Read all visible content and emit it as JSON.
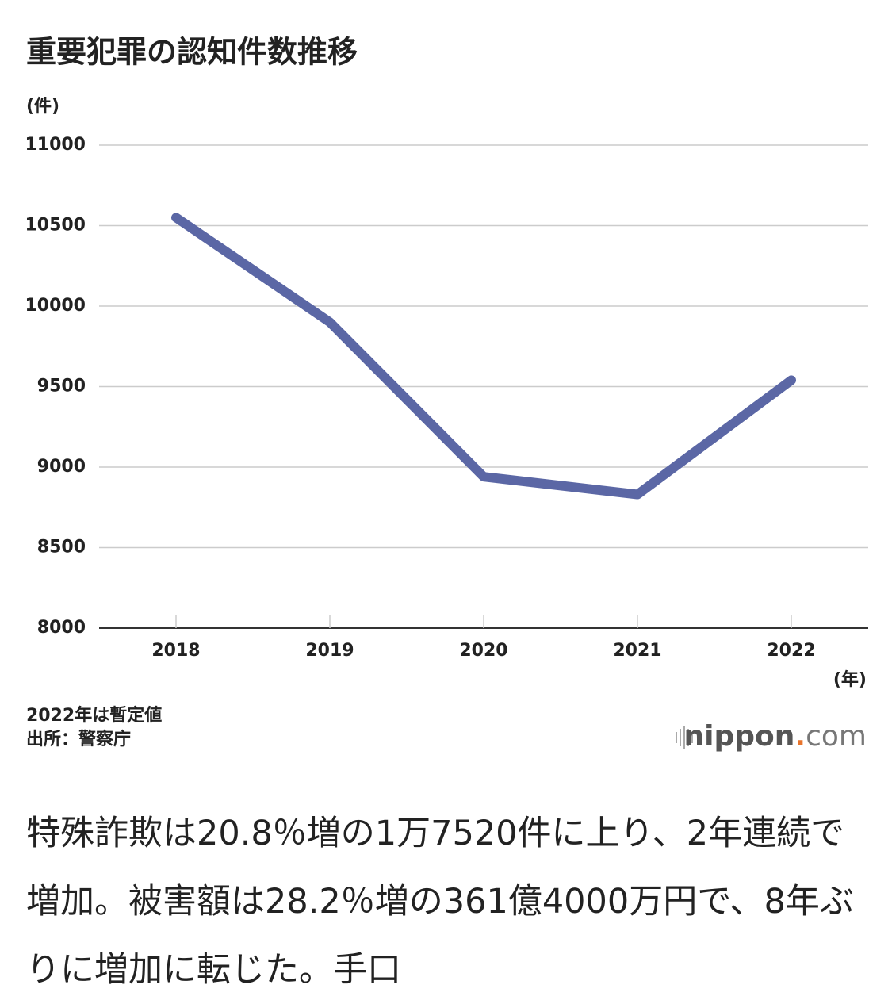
{
  "chart_data": {
    "type": "line",
    "title": "重要犯罪の認知件数推移",
    "y_unit": "(件)",
    "x_unit": "(年)",
    "categories": [
      "2018",
      "2019",
      "2020",
      "2021",
      "2022"
    ],
    "series": [
      {
        "name": "重要犯罪の認知件数",
        "color": "#5b67a5",
        "values": [
          10550,
          9900,
          8940,
          8830,
          9540
        ]
      }
    ],
    "ylim": [
      8000,
      11000
    ],
    "yticks": [
      8000,
      8500,
      9000,
      9500,
      10000,
      10500,
      11000
    ],
    "grid": true,
    "notes": [
      "2022年は暫定値",
      "出所：警察庁"
    ]
  },
  "brand": {
    "name": "nippon",
    "dot": ".",
    "suffix": "com"
  },
  "article": {
    "text": "特殊詐欺は20.8％増の1万7520件に上り、2年連続で増加。被害額は28.2％増の361億4000万円で、8年ぶりに増加に転じた。手口"
  }
}
